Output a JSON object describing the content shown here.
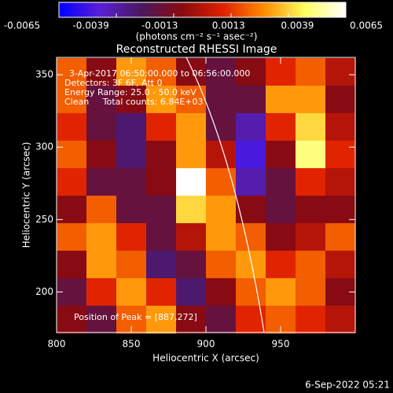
{
  "chart_data": {
    "type": "heatmap",
    "title": "Reconstructed RHESSI Image",
    "annotations": [
      "3-Apr-2017 06:50:00.000 to 06:56:00.000",
      "Detectors: 3F 6F, Att 0",
      "Energy Range: 25.0 - 50.0 keV",
      "Clean     Total counts: 6.84E+03",
      "Position of Peak = [887,272]"
    ],
    "xlabel": "Heliocentric X (arcsec)",
    "ylabel": "Heliocentric Y (arcsec)",
    "footer": "6-Sep-2022 05:21",
    "xlim": [
      800,
      1000
    ],
    "xticks": [
      800,
      850,
      900,
      950
    ],
    "ylim": [
      172,
      362
    ],
    "yticks": [
      200,
      250,
      300,
      350
    ],
    "x": [
      810,
      830,
      850,
      870,
      890,
      910,
      930,
      950,
      970,
      990
    ],
    "y": [
      352,
      333,
      314,
      295,
      276,
      257,
      238,
      219,
      200,
      181
    ],
    "values": [
      [
        0.002,
        -0.001,
        0.003,
        0.002,
        -0.001,
        -0.002,
        -0.001,
        0.001,
        0.002,
        0.0
      ],
      [
        0.002,
        -0.002,
        -0.001,
        0.003,
        0.002,
        -0.002,
        -0.002,
        0.003,
        0.003,
        -0.001
      ],
      [
        0.001,
        -0.002,
        -0.003,
        0.001,
        0.003,
        -0.002,
        -0.004,
        0.001,
        0.004,
        0.0
      ],
      [
        0.002,
        -0.001,
        -0.003,
        -0.001,
        0.003,
        0.0,
        -0.005,
        -0.001,
        0.005,
        0.001
      ],
      [
        0.001,
        -0.002,
        -0.002,
        -0.001,
        0.0065,
        0.002,
        -0.004,
        -0.002,
        0.001,
        0.0
      ],
      [
        -0.001,
        0.002,
        -0.002,
        -0.002,
        0.004,
        0.003,
        -0.001,
        -0.002,
        -0.001,
        -0.001
      ],
      [
        0.002,
        0.003,
        0.001,
        -0.002,
        0.0,
        0.003,
        0.002,
        -0.001,
        0.0,
        0.002
      ],
      [
        -0.001,
        0.003,
        0.002,
        -0.003,
        -0.002,
        0.002,
        0.003,
        0.001,
        0.002,
        0.0
      ],
      [
        -0.002,
        0.001,
        0.003,
        0.001,
        -0.003,
        -0.001,
        0.002,
        0.003,
        0.002,
        -0.001
      ],
      [
        -0.001,
        -0.002,
        0.002,
        0.003,
        -0.001,
        -0.002,
        0.001,
        0.002,
        0.001,
        0.0
      ]
    ],
    "colorbar": {
      "range": [
        -0.0065,
        0.0065
      ],
      "ticks": [
        -0.0065,
        -0.0039,
        -0.0013,
        0.0013,
        0.0039,
        0.0065
      ],
      "label": "(photons cm⁻² s⁻¹ asec⁻²)",
      "colormap": [
        "#0000ff",
        "#5a1fd6",
        "#4a1860",
        "#8a0a10",
        "#e02000",
        "#ff8c00",
        "#ffff60",
        "#ffffff"
      ]
    }
  }
}
